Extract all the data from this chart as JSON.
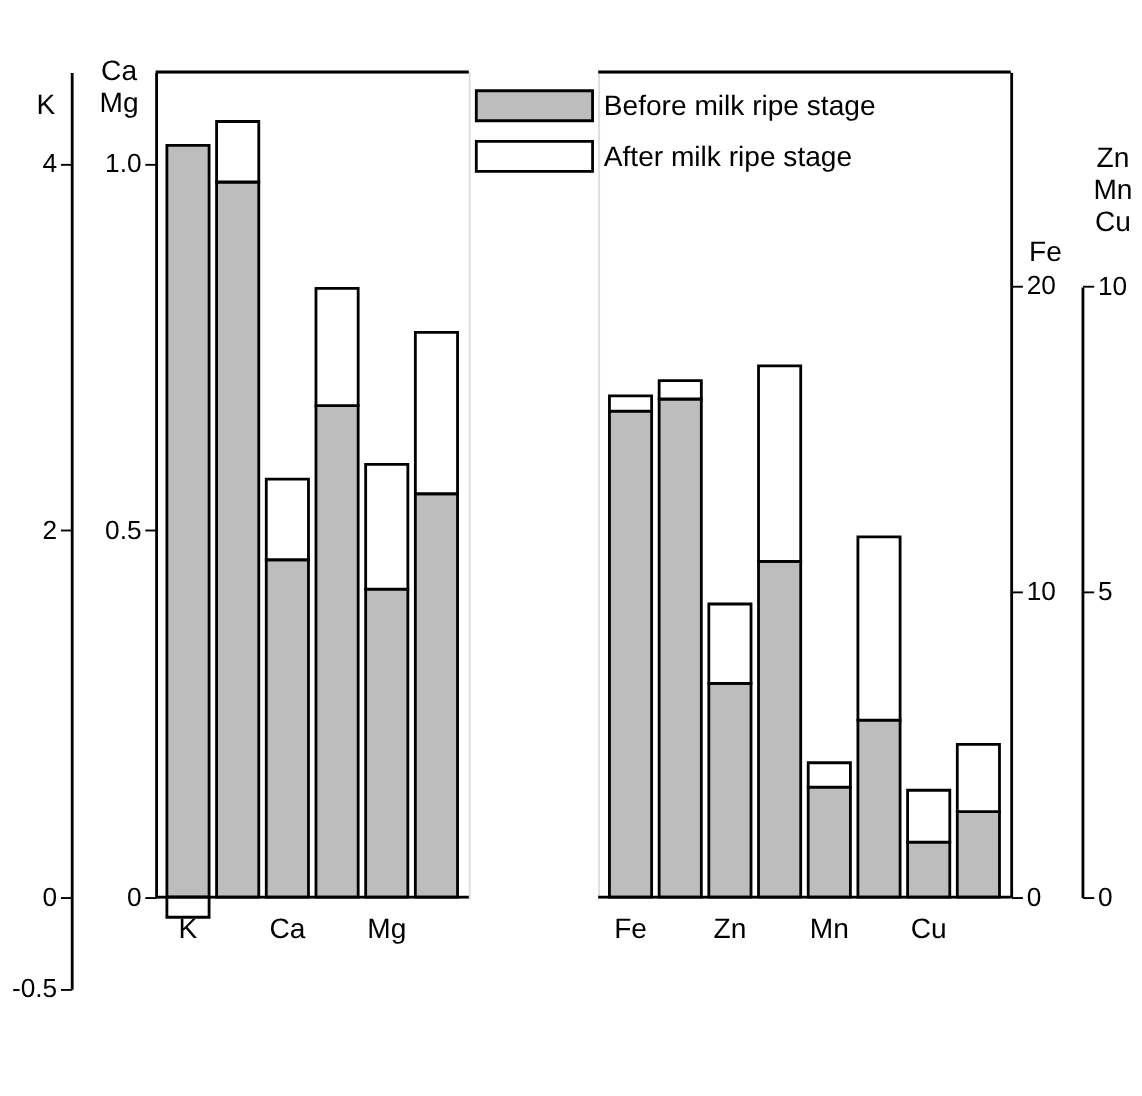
{
  "chart_data": [
    {
      "type": "bar",
      "stacked": true,
      "ylabel": "K",
      "y2label": "Ca\nMg",
      "categories": [
        "K",
        null,
        "Ca",
        null,
        "Mg",
        null
      ],
      "ylim": [
        -0.5,
        4.5
      ],
      "yticks": [
        -0.5,
        0,
        2,
        4
      ],
      "y2lim": [
        0,
        1.125
      ],
      "y2ticks": [
        0,
        0.5,
        {
          "value": 1,
          "label": "1.0"
        }
      ],
      "series": [
        {
          "color": "#bdbdbd",
          "axis": "y",
          "values": [
            4.1,
            3.9,
            null,
            null,
            null,
            null
          ]
        },
        {
          "color": "#ffffff",
          "axis": "y",
          "values": [
            -0.11,
            0.33,
            null,
            null,
            null,
            null
          ]
        },
        {
          "color": "#bdbdbd",
          "axis": "y2",
          "values": [
            null,
            null,
            0.46,
            0.67,
            0.42,
            0.55
          ]
        },
        {
          "color": "#ffffff",
          "axis": "y2",
          "values": [
            null,
            null,
            0.11,
            0.16,
            0.17,
            0.22
          ]
        }
      ]
    },
    {
      "type": "bar",
      "stacked": true,
      "legend": "top",
      "ylabel": "Fe",
      "y2label": "Zn\nMn\nCu",
      "categories": [
        "Fe",
        null,
        "Zn",
        null,
        "Mn",
        null,
        "Cu",
        null
      ],
      "ylim": [
        0,
        27
      ],
      "yticks": [
        0,
        10,
        20
      ],
      "y2lim": [
        0,
        10
      ],
      "y2ticks": [
        0,
        5,
        10
      ],
      "series": [
        {
          "name": "Before milk ripe stage",
          "color": "#bdbdbd",
          "axis": "y",
          "values": [
            15.9,
            16.3,
            null,
            null,
            null,
            null,
            null,
            null
          ]
        },
        {
          "name": "After milk ripe stage",
          "color": "#ffffff",
          "axis": "y",
          "values": [
            0.5,
            0.6,
            null,
            null,
            null,
            null,
            null,
            null
          ]
        },
        {
          "color": "#bdbdbd",
          "axis": "y2",
          "values": [
            null,
            null,
            3.5,
            5.5,
            1.8,
            2.9,
            0.9,
            1.4
          ]
        },
        {
          "color": "#ffffff",
          "axis": "y2",
          "values": [
            null,
            null,
            1.3,
            3.2,
            0.4,
            3.0,
            0.85,
            1.1
          ]
        }
      ]
    }
  ]
}
